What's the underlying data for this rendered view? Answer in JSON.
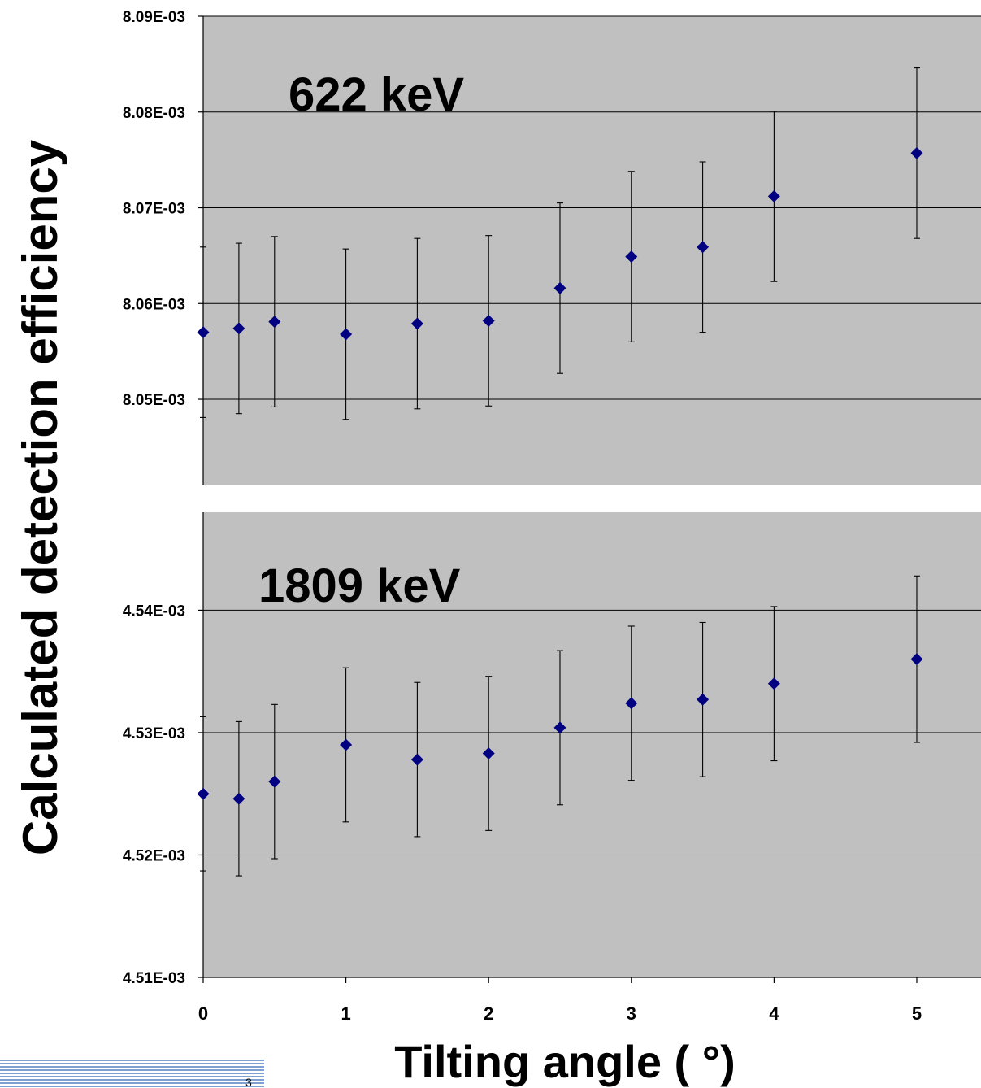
{
  "chart_data": [
    {
      "type": "scatter",
      "title": "622 keV",
      "xlabel": "Tilting angle (°)",
      "ylabel": "Calculated detection efficiency",
      "xlim": [
        0,
        5.45
      ],
      "ylim": [
        0.008041,
        0.00809
      ],
      "yticks": [
        "8.05E-03",
        "8.06E-03",
        "8.07E-03",
        "8.08E-03",
        "8.09E-03"
      ],
      "grid": true,
      "points": [
        {
          "x": 0,
          "y": 0.008057,
          "err": 8.9e-06
        },
        {
          "x": 0.25,
          "y": 0.0080574,
          "err": 8.9e-06
        },
        {
          "x": 0.5,
          "y": 0.0080581,
          "err": 8.9e-06
        },
        {
          "x": 1,
          "y": 0.0080568,
          "err": 8.9e-06
        },
        {
          "x": 1.5,
          "y": 0.0080579,
          "err": 8.9e-06
        },
        {
          "x": 2,
          "y": 0.0080582,
          "err": 8.9e-06
        },
        {
          "x": 2.5,
          "y": 0.0080616,
          "err": 8.9e-06
        },
        {
          "x": 3,
          "y": 0.0080649,
          "err": 8.9e-06
        },
        {
          "x": 3.5,
          "y": 0.0080659,
          "err": 8.9e-06
        },
        {
          "x": 4,
          "y": 0.0080712,
          "err": 8.9e-06
        },
        {
          "x": 5,
          "y": 0.0080757,
          "err": 8.9e-06
        }
      ]
    },
    {
      "type": "scatter",
      "title": "1809 keV",
      "xlabel": "Tilting angle (°)",
      "ylabel": "Calculated detection efficiency",
      "xlim": [
        0,
        5.45
      ],
      "ylim": [
        0.00451,
        0.004548
      ],
      "yticks": [
        "4.51E-03",
        "4.52E-03",
        "4.53E-03",
        "4.54E-03"
      ],
      "xticks": [
        "0",
        "1",
        "2",
        "3",
        "4",
        "5"
      ],
      "grid": true,
      "points": [
        {
          "x": 0,
          "y": 0.004525,
          "err": 6.3e-06
        },
        {
          "x": 0.25,
          "y": 0.0045246,
          "err": 6.3e-06
        },
        {
          "x": 0.5,
          "y": 0.004526,
          "err": 6.3e-06
        },
        {
          "x": 1,
          "y": 0.004529,
          "err": 6.3e-06
        },
        {
          "x": 1.5,
          "y": 0.0045278,
          "err": 6.3e-06
        },
        {
          "x": 2,
          "y": 0.0045283,
          "err": 6.3e-06
        },
        {
          "x": 2.5,
          "y": 0.0045304,
          "err": 6.3e-06
        },
        {
          "x": 3,
          "y": 0.0045324,
          "err": 6.3e-06
        },
        {
          "x": 3.5,
          "y": 0.0045327,
          "err": 6.3e-06
        },
        {
          "x": 4,
          "y": 0.004534,
          "err": 6.3e-06
        },
        {
          "x": 5,
          "y": 0.004536,
          "err": 6.8e-06
        }
      ]
    }
  ],
  "axis_titles": {
    "y": "Calculated detection efficiency",
    "x": "Tilting angle ( °)"
  },
  "page_number": "3",
  "colors": {
    "plot_background": "#c0c0c0",
    "marker": "#000080",
    "gridline": "#000000",
    "footer_stripe": "#7f9fd0"
  }
}
